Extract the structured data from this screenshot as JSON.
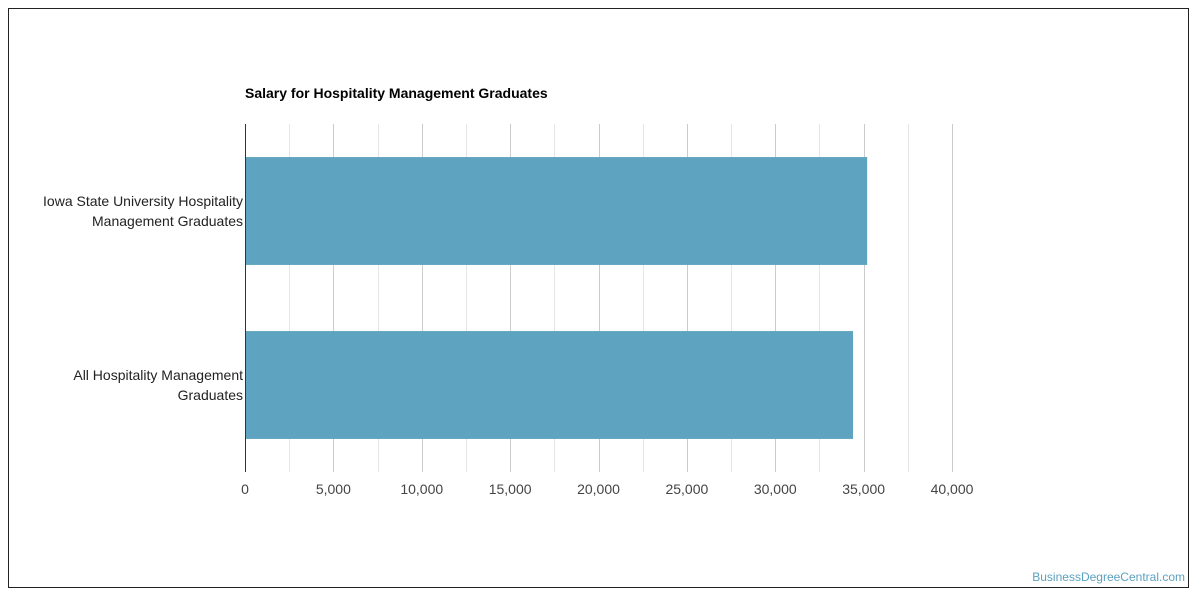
{
  "chart_data": {
    "type": "bar",
    "orientation": "horizontal",
    "title": "Salary for Hospitality Management Graduates",
    "categories": [
      [
        "Iowa State University Hospitality",
        "Management Graduates"
      ],
      [
        "All Hospitality Management",
        "Graduates"
      ]
    ],
    "values": [
      35200,
      34400
    ],
    "xlim": [
      0,
      40000
    ],
    "x_ticks": [
      "0",
      "5,000",
      "10,000",
      "15,000",
      "20,000",
      "25,000",
      "30,000",
      "35,000",
      "40,000"
    ],
    "x_tick_values": [
      0,
      5000,
      10000,
      15000,
      20000,
      25000,
      30000,
      35000,
      40000
    ],
    "grid": true,
    "bar_color": "#5ea3bf"
  },
  "watermark": "BusinessDegreeCentral.com"
}
